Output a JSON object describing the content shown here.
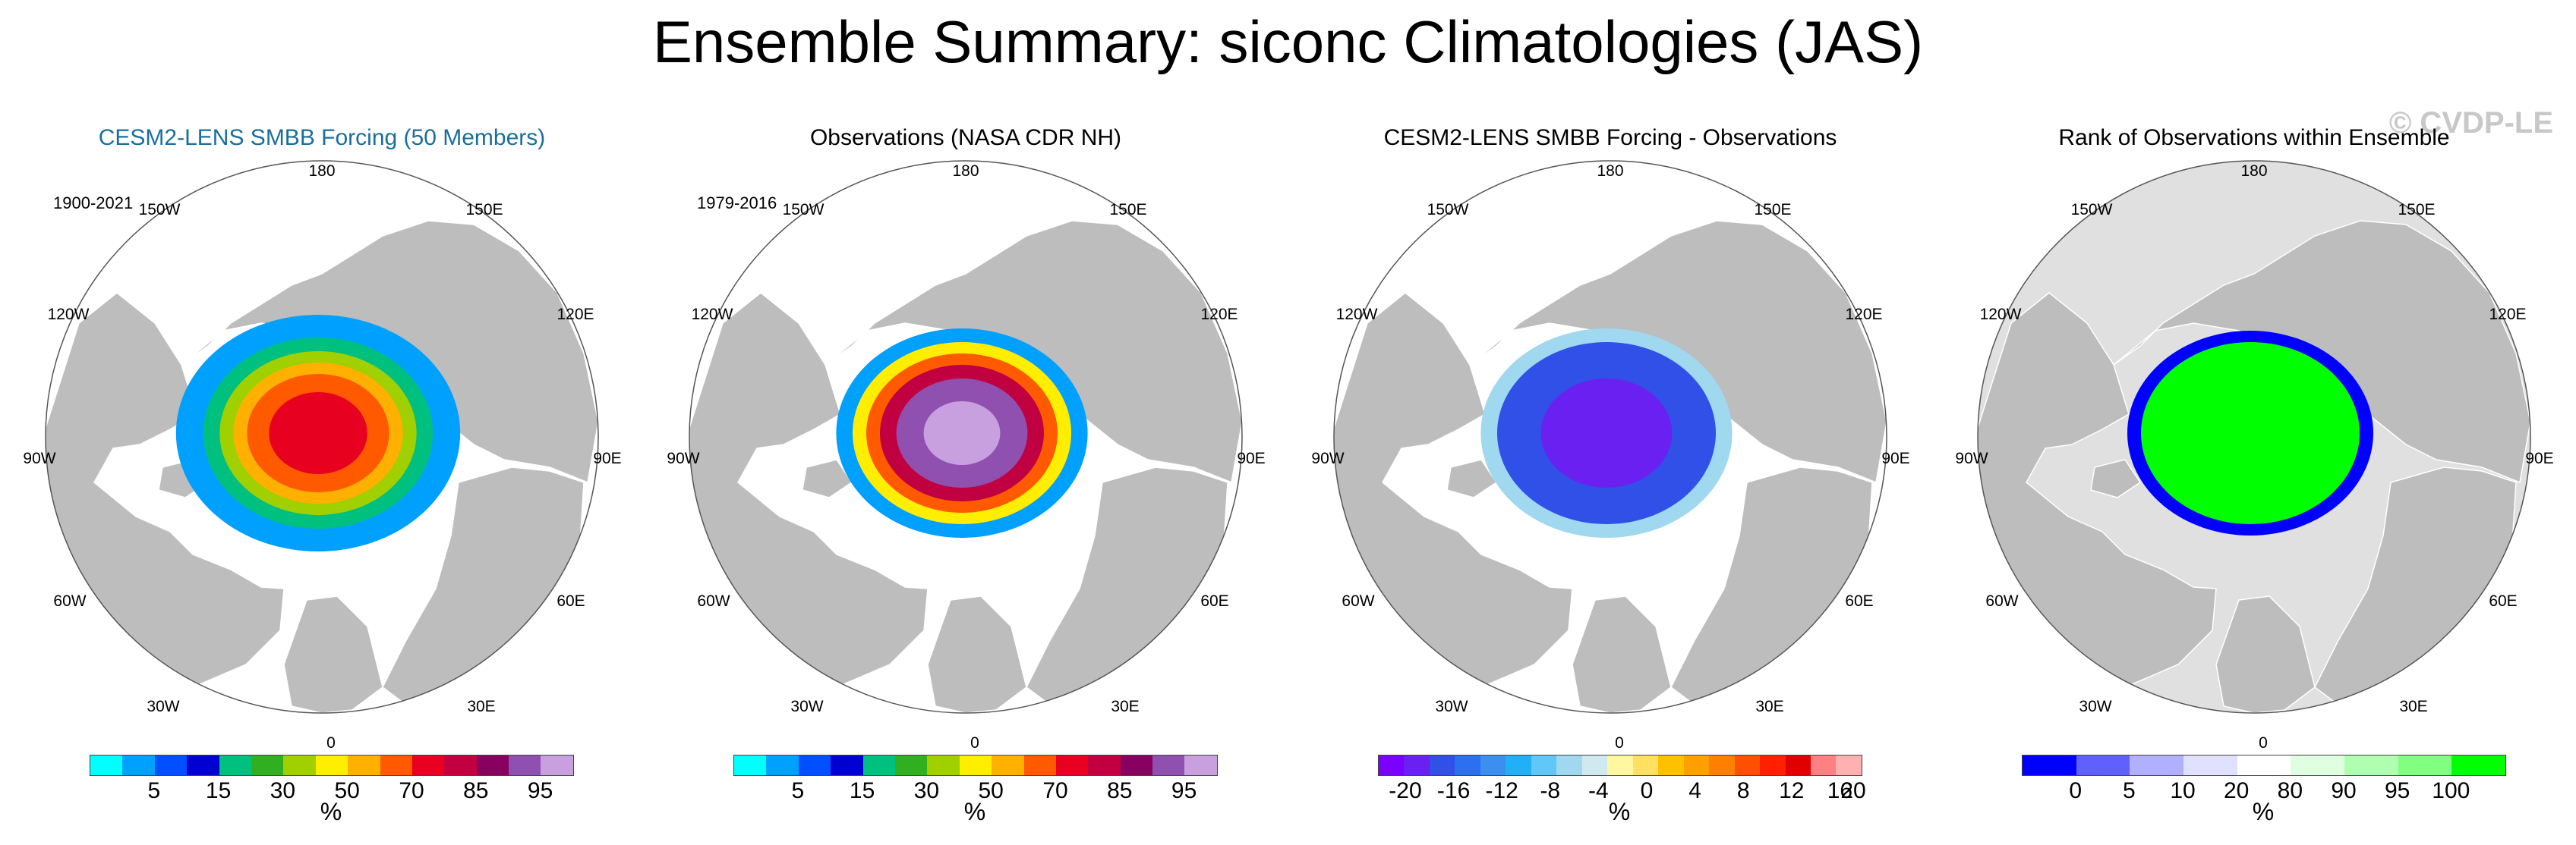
{
  "title": "Ensemble Summary: siconc Climatologies (JAS)",
  "watermark": "© CVDP-LE",
  "lon_labels": [
    "180",
    "150W",
    "150E",
    "120W",
    "120E",
    "90W",
    "90E",
    "60W",
    "60E",
    "30W",
    "30E",
    "0"
  ],
  "panels": [
    {
      "title": "CESM2-LENS SMBB Forcing (50 Members)",
      "period": "1900-2021",
      "scale": "percent",
      "colorbar": {
        "colors": [
          "#00ffff",
          "#00a0ff",
          "#0050ff",
          "#0000d0",
          "#00c080",
          "#30b020",
          "#a0d000",
          "#ffee00",
          "#ffb000",
          "#ff5a00",
          "#e80020",
          "#c00040",
          "#880060",
          "#9050b0",
          "#c8a0e0"
        ],
        "ticks": [
          "5",
          "15",
          "30",
          "50",
          "70",
          "85",
          "95"
        ],
        "units": "%"
      }
    },
    {
      "title": "Observations (NASA CDR NH)",
      "period": "1979-2016",
      "scale": "percent",
      "colorbar": {
        "colors": [
          "#00ffff",
          "#00a0ff",
          "#0050ff",
          "#0000d0",
          "#00c080",
          "#30b020",
          "#a0d000",
          "#ffee00",
          "#ffb000",
          "#ff5a00",
          "#e80020",
          "#c00040",
          "#880060",
          "#9050b0",
          "#c8a0e0"
        ],
        "ticks": [
          "5",
          "15",
          "30",
          "50",
          "70",
          "85",
          "95"
        ],
        "units": "%"
      }
    },
    {
      "title": "CESM2-LENS SMBB Forcing - Observations",
      "period": "",
      "scale": "diff",
      "colorbar": {
        "colors": [
          "#7a00ff",
          "#6a20f0",
          "#3050e8",
          "#2a70f0",
          "#3a8ff0",
          "#20b0f8",
          "#60c8f8",
          "#a0d8f0",
          "#d0e8f0",
          "#fff8a0",
          "#ffe060",
          "#ffc000",
          "#ffa000",
          "#ff8000",
          "#ff5000",
          "#ff2000",
          "#e00000",
          "#ff8080",
          "#ffb0b0"
        ],
        "ticks": [
          "-20",
          "-16",
          "-12",
          "-8",
          "-4",
          "0",
          "4",
          "8",
          "12",
          "16",
          "20"
        ],
        "units": "%"
      }
    },
    {
      "title": "Rank of Observations within Ensemble",
      "period": "",
      "scale": "rank",
      "colorbar": {
        "colors": [
          "#0000ff",
          "#6060ff",
          "#b0b0ff",
          "#e0e0ff",
          "#ffffff",
          "#e0ffe0",
          "#b0ffb0",
          "#80ff80",
          "#00ff00"
        ],
        "ticks": [
          "0",
          "5",
          "10",
          "20",
          "80",
          "90",
          "95",
          "100"
        ],
        "units": "%"
      }
    }
  ]
}
